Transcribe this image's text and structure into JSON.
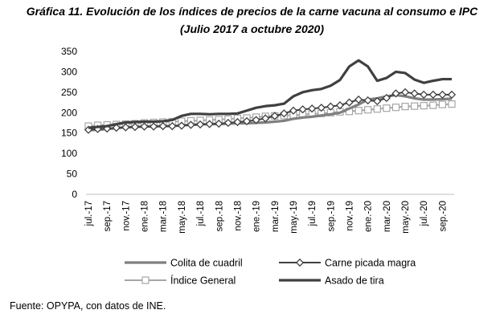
{
  "chart_data": {
    "type": "line",
    "title": "Gráfica 11. Evolución de los índices de precios de la carne vacuna al consumo e IPC",
    "subtitle": "(Julio 2017 a octubre 2020)",
    "xlabel": "",
    "ylabel": "",
    "ylim": [
      0,
      350
    ],
    "yticks": [
      "0",
      "50",
      "100",
      "150",
      "200",
      "250",
      "300",
      "350"
    ],
    "grid": false,
    "legend_position": "bottom",
    "x": [
      "jul.-17",
      "ago.-17",
      "sep.-17",
      "oct.-17",
      "nov.-17",
      "dic.-17",
      "ene.-18",
      "feb.-18",
      "mar.-18",
      "abr.-18",
      "may.-18",
      "jun.-18",
      "jul.-18",
      "ago.-18",
      "sep.-18",
      "oct.-18",
      "nov.-18",
      "dic.-18",
      "ene.-19",
      "feb.-19",
      "mar.-19",
      "abr.-19",
      "may.-19",
      "jun.-19",
      "jul.-19",
      "ago.-19",
      "sep.-19",
      "oct.-19",
      "nov.-19",
      "dic.-19",
      "ene.-20",
      "feb.-20",
      "mar.-20",
      "abr.-20",
      "may.-20",
      "jun.-20",
      "jul.-20",
      "ago.-20",
      "sep.-20",
      "oct.-20"
    ],
    "xticks": [
      "jul.-17",
      "sep.-17",
      "nov.-17",
      "ene.-18",
      "mar.-18",
      "may.-18",
      "jul.-18",
      "sep.-18",
      "nov.-18",
      "ene.-19",
      "mar.-19",
      "may.-19",
      "jul.-19",
      "sep.-19",
      "nov.-19",
      "ene.-20",
      "mar.-20",
      "may.-20",
      "jul.-20",
      "sep.-20"
    ],
    "series": [
      {
        "name": "Colita de cuadril",
        "color": "#7f7f7f",
        "marker": "none",
        "values": [
          157,
          158,
          160,
          162,
          164,
          165,
          166,
          166,
          167,
          167,
          169,
          170,
          171,
          172,
          172,
          173,
          174,
          174,
          175,
          176,
          178,
          180,
          185,
          188,
          190,
          193,
          196,
          200,
          210,
          220,
          232,
          235,
          240,
          243,
          240,
          235,
          232,
          232,
          233,
          234
        ]
      },
      {
        "name": "Carne picada magra",
        "color": "#404040",
        "marker": "diamond",
        "values": [
          158,
          160,
          161,
          163,
          164,
          165,
          166,
          166,
          167,
          167,
          168,
          170,
          171,
          172,
          173,
          175,
          177,
          179,
          182,
          186,
          192,
          198,
          205,
          208,
          210,
          212,
          215,
          218,
          225,
          232,
          230,
          228,
          236,
          247,
          250,
          247,
          244,
          244,
          244,
          244
        ]
      },
      {
        "name": "Índice General",
        "color": "#a6a6a6",
        "marker": "square",
        "values": [
          167,
          169,
          170,
          171,
          172,
          173,
          175,
          176,
          177,
          178,
          179,
          180,
          181,
          182,
          183,
          184,
          186,
          187,
          189,
          191,
          192,
          193,
          194,
          195,
          197,
          198,
          200,
          202,
          203,
          205,
          207,
          209,
          211,
          213,
          215,
          216,
          217,
          218,
          220,
          221
        ]
      },
      {
        "name": "Asado de tira",
        "color": "#404040",
        "marker": "none",
        "values": [
          163,
          165,
          167,
          172,
          176,
          177,
          178,
          178,
          179,
          182,
          192,
          197,
          197,
          196,
          197,
          197,
          198,
          205,
          212,
          216,
          218,
          222,
          240,
          250,
          255,
          258,
          266,
          280,
          313,
          328,
          313,
          278,
          285,
          300,
          297,
          281,
          273,
          278,
          282,
          282
        ]
      }
    ]
  },
  "legend": {
    "entries": [
      "Colita de cuadril",
      "Carne picada magra",
      "Índice General",
      "Asado de tira"
    ]
  },
  "source": "Fuente: OPYPA, con datos de INE."
}
